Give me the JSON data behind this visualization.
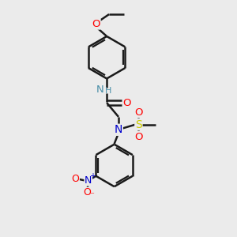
{
  "bg_color": "#ebebeb",
  "bond_color": "#1a1a1a",
  "atom_colors": {
    "O": "#ff0000",
    "N": "#0000cc",
    "S": "#cccc00",
    "NH": "#4a8fa8",
    "C": "#1a1a1a"
  },
  "figsize": [
    3.0,
    3.0
  ],
  "dpi": 100,
  "lw": 1.8
}
